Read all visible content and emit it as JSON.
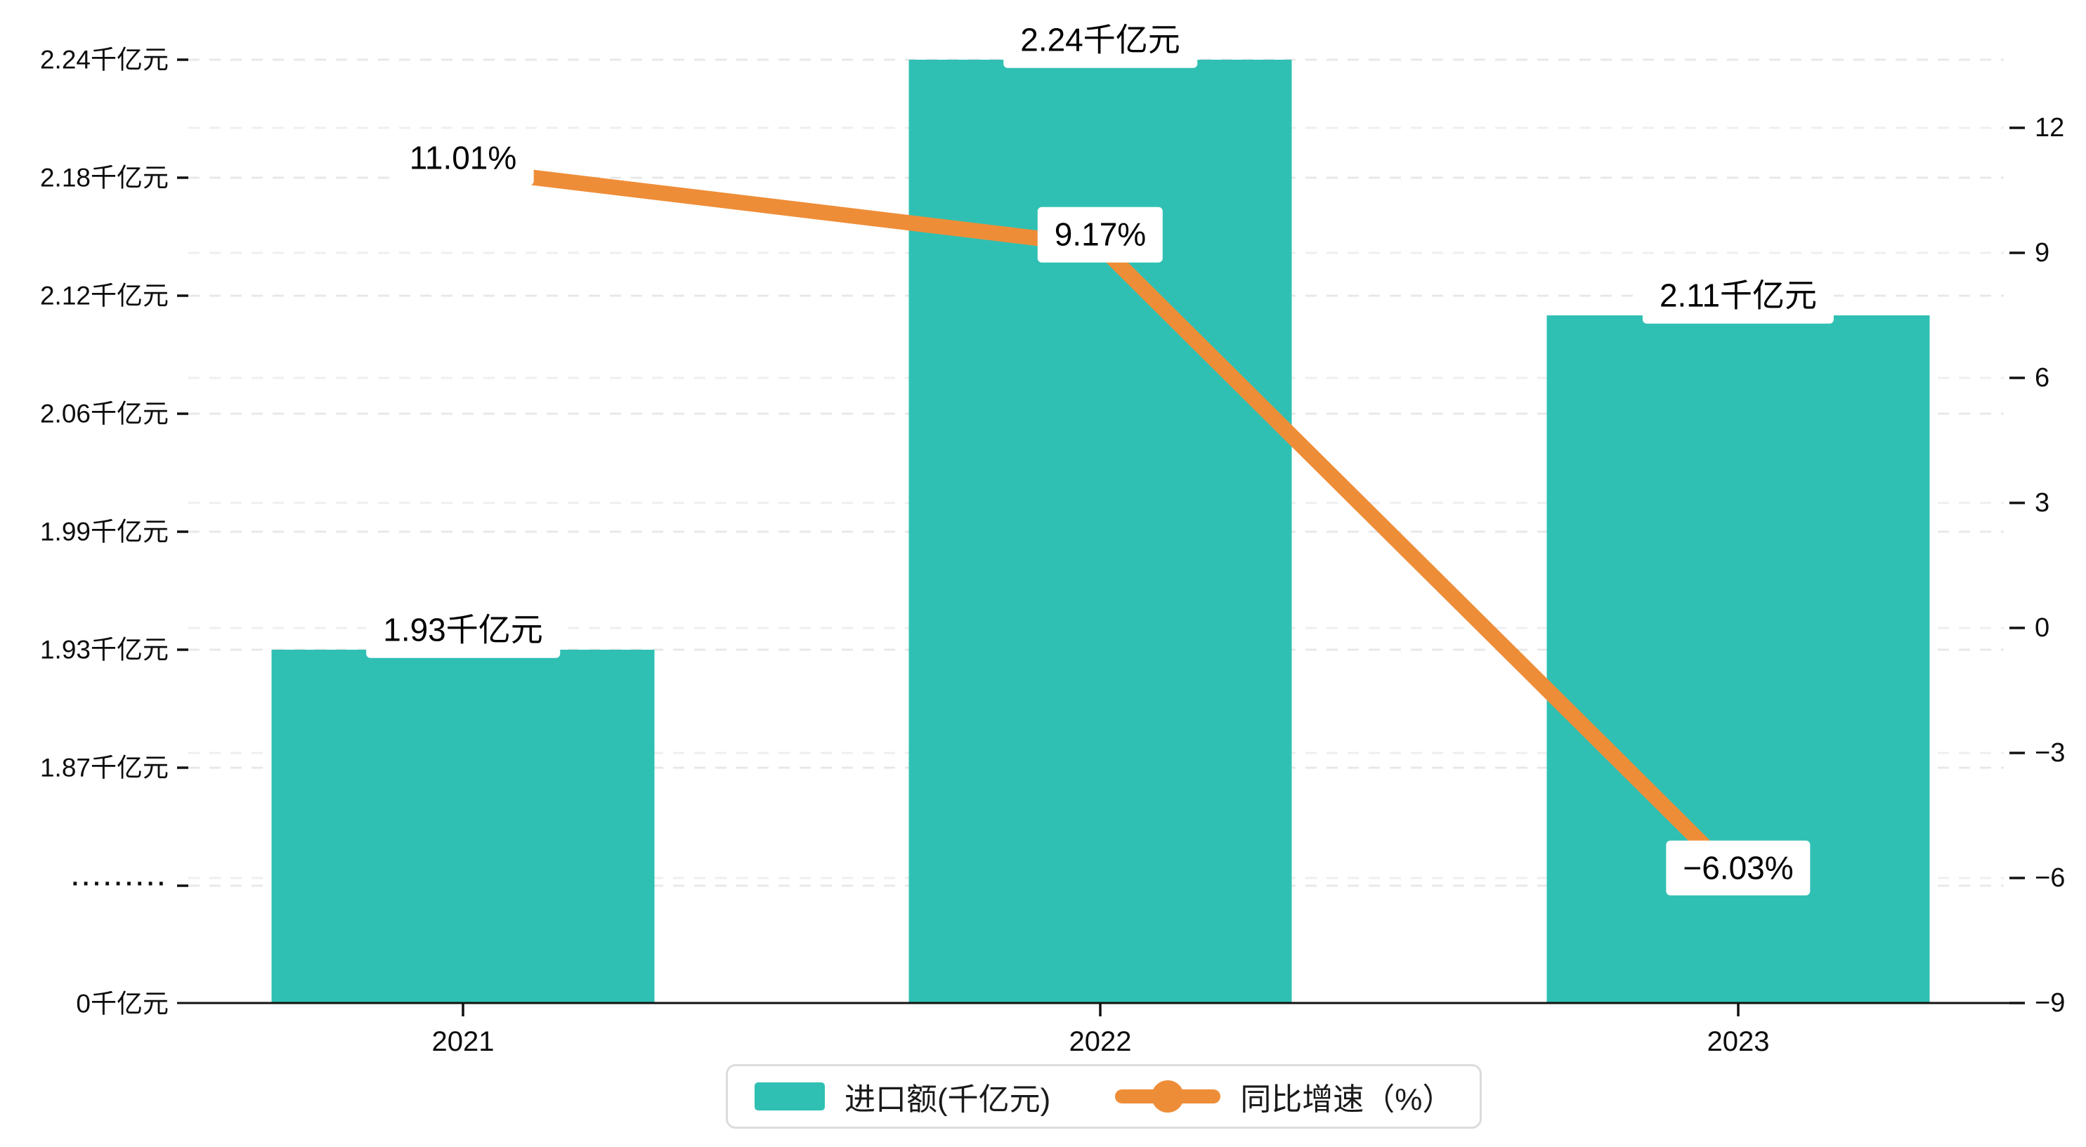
{
  "chart_data": {
    "type": "bar+line (dual y-axis)",
    "categories": [
      "2021",
      "2022",
      "2023"
    ],
    "series": [
      {
        "name": "进口额(千亿元)",
        "type": "bar",
        "axis": "left",
        "color": "#2fc0b3",
        "values": [
          1.93,
          2.24,
          2.11
        ],
        "data_labels": [
          "1.93千亿元",
          "2.24千亿元",
          "2.11千亿元"
        ]
      },
      {
        "name": "同比增速（%）",
        "type": "line",
        "axis": "right",
        "color": "#ee8d38",
        "values": [
          11.01,
          9.17,
          -6.03
        ],
        "data_labels": [
          "11.01%",
          "9.17%",
          "−6.03%"
        ]
      }
    ],
    "y_axis_left": {
      "unit": "千亿元",
      "broken_axis": true,
      "tick_values": [
        2.24,
        2.18,
        2.12,
        2.06,
        1.99,
        1.93,
        1.87
      ],
      "tick_labels": [
        "2.24千亿元",
        "2.18千亿元",
        "2.12千亿元",
        "2.06千亿元",
        "1.99千亿元",
        "1.93千亿元",
        "1.87千亿元"
      ],
      "break_label": "·········",
      "zero_label": "0千亿元"
    },
    "y_axis_right": {
      "min": -9,
      "max": 12,
      "step": 3,
      "tick_labels": [
        "12",
        "9",
        "6",
        "3",
        "0",
        "−3",
        "−6",
        "−9"
      ]
    },
    "x_axis": {
      "tick_labels": [
        "2021",
        "2022",
        "2023"
      ]
    },
    "legend": {
      "items": [
        {
          "label": "进口额(千亿元)",
          "marker": "bar-swatch",
          "color": "#2fc0b3"
        },
        {
          "label": "同比增速（%）",
          "marker": "line-dot",
          "color": "#ee8d38"
        }
      ]
    },
    "grid": {
      "style": "dashed",
      "left_grid_color": "#e8e8e8",
      "right_grid_color": "#efefef"
    },
    "colors": {
      "bar": "#2fc0b3",
      "line": "#ee8d38",
      "axis": "#111111",
      "text": "#0d0d0d",
      "label_bg": "#ffffff"
    }
  }
}
